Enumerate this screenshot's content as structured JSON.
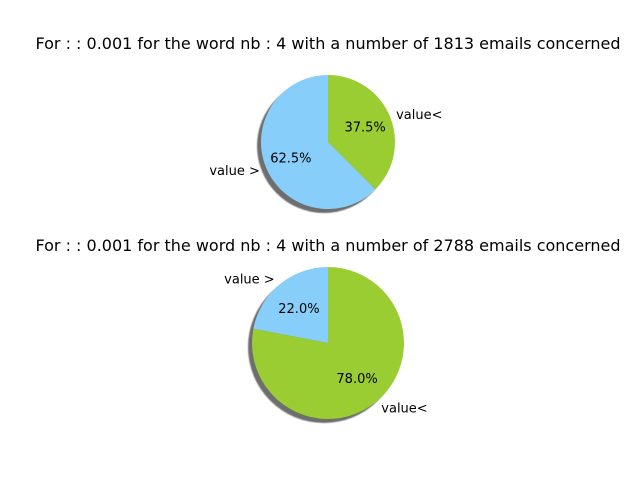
{
  "chart_data": [
    {
      "type": "pie",
      "title": "For :  : 0.001 for the word nb : 4 with a number of 1813 emails concerned",
      "slices": [
        {
          "label": "value >",
          "value": 62.5,
          "pct_label": "62.5%",
          "color": "#87CEFA"
        },
        {
          "label": "value<",
          "value": 37.5,
          "pct_label": "37.5%",
          "color": "#9ACD32"
        }
      ],
      "start_angle_deg": 90,
      "direction": "counterclockwise",
      "shadow": true
    },
    {
      "type": "pie",
      "title": "For :  : 0.001 for the word nb : 4 with a number of 2788 emails concerned",
      "slices": [
        {
          "label": "value >",
          "value": 22.0,
          "pct_label": "22.0%",
          "color": "#87CEFA"
        },
        {
          "label": "value<",
          "value": 78.0,
          "pct_label": "78.0%",
          "color": "#9ACD32"
        }
      ],
      "start_angle_deg": 90,
      "direction": "counterclockwise",
      "shadow": true
    }
  ]
}
